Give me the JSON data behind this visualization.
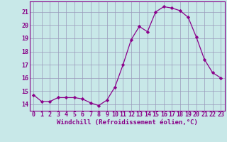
{
  "x": [
    0,
    1,
    2,
    3,
    4,
    5,
    6,
    7,
    8,
    9,
    10,
    11,
    12,
    13,
    14,
    15,
    16,
    17,
    18,
    19,
    20,
    21,
    22,
    23
  ],
  "y": [
    14.7,
    14.2,
    14.2,
    14.5,
    14.5,
    14.5,
    14.4,
    14.1,
    13.9,
    14.3,
    15.3,
    17.0,
    18.9,
    19.9,
    19.5,
    21.0,
    21.4,
    21.3,
    21.1,
    20.6,
    19.1,
    17.4,
    16.4,
    16.0
  ],
  "line_color": "#8b008b",
  "marker": "D",
  "marker_size": 2.2,
  "background_color": "#c8e8e8",
  "grid_color": "#9999bb",
  "xlim": [
    -0.5,
    23.5
  ],
  "ylim": [
    13.5,
    21.8
  ],
  "yticks": [
    14,
    15,
    16,
    17,
    18,
    19,
    20,
    21
  ],
  "xtick_labels": [
    "0",
    "1",
    "2",
    "3",
    "4",
    "5",
    "6",
    "7",
    "8",
    "9",
    "10",
    "11",
    "12",
    "13",
    "14",
    "15",
    "16",
    "17",
    "18",
    "19",
    "20",
    "21",
    "22",
    "23"
  ],
  "xlabel": "Windchill (Refroidissement éolien,°C)",
  "xlabel_fontsize": 6.5,
  "tick_fontsize": 6.0,
  "tick_color": "#880088",
  "axis_color": "#880088",
  "spine_color": "#880088"
}
